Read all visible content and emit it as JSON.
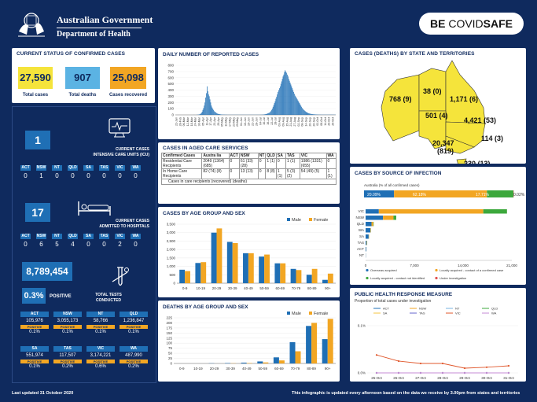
{
  "header": {
    "gov_line1": "Australian Government",
    "gov_line2": "Department of Health",
    "brand_be": "BE ",
    "brand_covid": "COVID",
    "brand_safe": "SAFE"
  },
  "status": {
    "title": "CURRENT STATUS OF CONFIRMED CASES",
    "total_cases": "27,590",
    "total_cases_label": "Total cases",
    "total_deaths": "907",
    "total_deaths_label": "Total deaths",
    "recovered": "25,098",
    "recovered_label": "Cases recovered",
    "colors": {
      "cases": "#f5e43b",
      "deaths": "#5bb3e3",
      "recovered": "#f2a623"
    }
  },
  "icu": {
    "value": "1",
    "label_line1": "CURRENT CASES",
    "label_line2": "INTENSIVE CARE UNITS (ICU)",
    "states": [
      "ACT",
      "NSW",
      "NT",
      "QLD",
      "SA",
      "TAS",
      "VIC",
      "WA"
    ],
    "values": [
      "0",
      "1",
      "0",
      "0",
      "0",
      "0",
      "0",
      "0"
    ],
    "icon": "ecg-monitor-icon"
  },
  "hospital": {
    "value": "17",
    "label_line1": "CURRENT CASES",
    "label_line2": "ADMITTED TO HOSPITALS",
    "states": [
      "ACT",
      "NSW",
      "NT",
      "QLD",
      "SA",
      "TAS",
      "VIC",
      "WA"
    ],
    "values": [
      "0",
      "6",
      "5",
      "4",
      "0",
      "0",
      "2",
      "0"
    ],
    "icon": "hospital-bed-icon"
  },
  "tests": {
    "value": "8,789,454",
    "positive": "0.3%",
    "positive_label": "POSITIVE",
    "label_line1": "TOTAL TESTS",
    "label_line2": "CONDUCTED",
    "icon": "test-tube-icon",
    "positive_tag": "POSITIVE",
    "states_row1": [
      {
        "state": "ACT",
        "tests": "105,976",
        "pos": "0.1%"
      },
      {
        "state": "NSW",
        "tests": "3,055,173",
        "pos": "0.1%"
      },
      {
        "state": "NT",
        "tests": "58,766",
        "pos": "0.1%"
      },
      {
        "state": "QLD",
        "tests": "1,236,847",
        "pos": "0.1%"
      }
    ],
    "states_row2": [
      {
        "state": "SA",
        "tests": "551,974",
        "pos": "0.1%"
      },
      {
        "state": "TAS",
        "tests": "117,507",
        "pos": "0.2%"
      },
      {
        "state": "VIC",
        "tests": "3,174,221",
        "pos": "0.6%"
      },
      {
        "state": "WA",
        "tests": "487,990",
        "pos": "0.2%"
      }
    ]
  },
  "aged_care": {
    "title": "CASES IN AGED CARE SERVICES",
    "headers": [
      "Confirmed Cases",
      "Austra lia",
      "ACT",
      "NSW",
      "NT",
      "QLD",
      "SA",
      "TAS",
      "VIC",
      "WA"
    ],
    "rows": [
      [
        "Residential Care Recipients",
        "2049 (1364) (685)",
        "0",
        "61 (33) (28)",
        "0",
        "1 (1)",
        "0",
        "1 (1)",
        "1986 (1331) (655)",
        "0"
      ],
      [
        "In Home Care Recipients",
        "82 (74) (8)",
        "0",
        "13 (13)",
        "0",
        "8 (8)",
        "1 (1)",
        "5 (3) (2)",
        "54 (49) (5)",
        "1 (1)"
      ]
    ],
    "footnote": "Cases in care recipients (recovered) (deaths)"
  },
  "footer": {
    "left": "Last updated 31 October 2020",
    "right": "This infographic is updated every afternoon based on the data we receive by 3.00pm from states and territories"
  },
  "chart_data": [
    {
      "id": "daily",
      "type": "bar",
      "title": "DAILY NUMBER OF REPORTED CASES",
      "ylim": [
        0,
        800
      ],
      "yticks": [
        0,
        100,
        200,
        300,
        400,
        500,
        600,
        700,
        800
      ],
      "xlabels": [
        "22-Jan",
        "28-Feb",
        "06-Mar",
        "12-Mar",
        "18-Mar",
        "24-Mar",
        "30-Mar",
        "05-Apr",
        "11-Apr",
        "17-Apr",
        "23-Apr",
        "29-Apr",
        "05-May",
        "11-May",
        "17-May",
        "23-May",
        "29-May",
        "04-Jun",
        "10-Jun",
        "16-Jun",
        "22-Jun",
        "28-Jun",
        "04-Jul",
        "10-Jul",
        "16-Jul",
        "22-Jul",
        "28-Jul",
        "03-Aug",
        "09-Aug",
        "15-Aug",
        "21-Aug",
        "27-Aug",
        "02-Sep",
        "08-Sep",
        "14-Sep",
        "20-Sep",
        "26-Sep",
        "02-Oct",
        "08-Oct",
        "14-Oct",
        "20-Oct",
        "26-Oct"
      ],
      "values": [
        0,
        0,
        0,
        0,
        0,
        0,
        0,
        0,
        0,
        0,
        0,
        0,
        0,
        0,
        0,
        0,
        0,
        0,
        0,
        0,
        0,
        0,
        0,
        0,
        0,
        1,
        1,
        0,
        0,
        1,
        2,
        3,
        5,
        8,
        12,
        20,
        30,
        50,
        80,
        110,
        150,
        200,
        280,
        350,
        460,
        380,
        330,
        300,
        250,
        200,
        150,
        120,
        100,
        80,
        60,
        50,
        40,
        30,
        22,
        18,
        14,
        12,
        10,
        8,
        6,
        5,
        5,
        4,
        4,
        3,
        3,
        3,
        2,
        2,
        2,
        2,
        2,
        2,
        2,
        2,
        2,
        2,
        2,
        2,
        2,
        2,
        2,
        2,
        2,
        2,
        2,
        2,
        2,
        2,
        2,
        2,
        2,
        2,
        2,
        2,
        2,
        2,
        2,
        2,
        2,
        2,
        2,
        2,
        2,
        2,
        2,
        2,
        2,
        2,
        2,
        2,
        2,
        2,
        2,
        3,
        3,
        4,
        5,
        6,
        8,
        10,
        12,
        15,
        20,
        25,
        30,
        35,
        45,
        60,
        80,
        100,
        130,
        160,
        190,
        220,
        260,
        290,
        330,
        370,
        400,
        430,
        460,
        500,
        540,
        580,
        620,
        650,
        690,
        720,
        700,
        680,
        650,
        620,
        580,
        550,
        520,
        490,
        460,
        430,
        400,
        370,
        340,
        310,
        290,
        270,
        250,
        230,
        210,
        190,
        170,
        150,
        130,
        110,
        95,
        80,
        70,
        60,
        50,
        42,
        36,
        30,
        25,
        22,
        19,
        16,
        14,
        12,
        10,
        9,
        8,
        7,
        6,
        6,
        5,
        5,
        4,
        4,
        4,
        3,
        3,
        3,
        3,
        3,
        3,
        3,
        3,
        3,
        3,
        3,
        3,
        3,
        3,
        3,
        3,
        3,
        3,
        3,
        3,
        3
      ],
      "color": "#1f6fb5"
    },
    {
      "id": "state_deaths",
      "type": "map",
      "title": "CASES (DEATHS) BY STATE AND TERRITORIES",
      "labels": [
        {
          "state": "WA",
          "text": "768 (9)"
        },
        {
          "state": "NT",
          "text": "38 (0)"
        },
        {
          "state": "QLD",
          "text": "1,171 (6)"
        },
        {
          "state": "SA",
          "text": "501 (4)"
        },
        {
          "state": "NSW",
          "text": "4,421 (53)"
        },
        {
          "state": "ACT",
          "text": "114 (3)"
        },
        {
          "state": "VIC",
          "text": "20,347"
        },
        {
          "state": "VIC_deaths",
          "text": "(819)"
        },
        {
          "state": "TAS",
          "text": "230 (13)"
        }
      ],
      "colors": {
        "fill": "#f5e43b",
        "stroke": "#333333"
      }
    },
    {
      "id": "source",
      "type": "bar",
      "title": "CASES BY SOURCE OF INFECTION",
      "summary_label": "Australia (% of all confirmed cases)",
      "summary": [
        {
          "name": "Overseas acquired",
          "pct": "20.09%",
          "value": 20.09,
          "color": "#1f6fb5"
        },
        {
          "name": "Locally acquired - contact of a confirmed case",
          "pct": "62.18%",
          "value": 62.18,
          "color": "#f2a623"
        },
        {
          "name": "Locally acquired - contact not identified",
          "pct": "17.71%",
          "value": 17.71,
          "color": "#3ca83c"
        },
        {
          "name": "Under investigation",
          "pct": "0.02%",
          "value": 0.02,
          "color": "#e05050"
        }
      ],
      "categories": [
        "VIC",
        "NSW",
        "QLD",
        "WA",
        "SA",
        "TAS",
        "ACT",
        "NT"
      ],
      "series": [
        {
          "name": "Overseas acquired",
          "values": [
            1900,
            2500,
            850,
            690,
            440,
            150,
            100,
            30
          ],
          "color": "#1f6fb5"
        },
        {
          "name": "Locally acquired - contact of a confirmed case",
          "values": [
            15000,
            1500,
            250,
            60,
            55,
            60,
            12,
            6
          ],
          "color": "#f2a623"
        },
        {
          "name": "Locally acquired - contact not identified",
          "values": [
            3400,
            400,
            60,
            15,
            5,
            20,
            2,
            2
          ],
          "color": "#3ca83c"
        },
        {
          "name": "Under investigation",
          "values": [
            5,
            2,
            0,
            0,
            0,
            0,
            0,
            0
          ],
          "color": "#e05050"
        }
      ],
      "xticks": [
        "0",
        "7,000",
        "14,000",
        "21,000"
      ],
      "xlim": [
        0,
        21000
      ]
    },
    {
      "id": "age_sex",
      "type": "bar",
      "title": "CASES BY AGE GROUP AND SEX",
      "categories": [
        "0-9",
        "10-19",
        "20-29",
        "30-39",
        "40-49",
        "50-59",
        "60-69",
        "70-79",
        "80-89",
        "90+"
      ],
      "series": [
        {
          "name": "Male",
          "values": [
            800,
            1200,
            3000,
            2450,
            1780,
            1580,
            1180,
            850,
            500,
            200
          ],
          "color": "#1f6fb5"
        },
        {
          "name": "Female",
          "values": [
            720,
            1250,
            3250,
            2380,
            1780,
            1700,
            1180,
            780,
            850,
            570
          ],
          "color": "#f2a623"
        }
      ],
      "ylim": [
        0,
        3500
      ],
      "yticks": [
        "0",
        "500",
        "1,000",
        "1,500",
        "2,000",
        "2,500",
        "3,000",
        "3,500"
      ]
    },
    {
      "id": "deaths_age",
      "type": "bar",
      "title": "DEATHS BY AGE GROUP AND SEX",
      "categories": [
        "0-9",
        "10-19",
        "20-29",
        "30-39",
        "40-49",
        "50-59",
        "60-69",
        "70-79",
        "80-89",
        "90+"
      ],
      "series": [
        {
          "name": "Male",
          "values": [
            0,
            0,
            1,
            2,
            4,
            10,
            30,
            105,
            185,
            120
          ],
          "color": "#1f6fb5"
        },
        {
          "name": "Female",
          "values": [
            0,
            0,
            0,
            1,
            2,
            5,
            15,
            60,
            200,
            220
          ],
          "color": "#f2a623"
        }
      ],
      "ylim": [
        0,
        225
      ],
      "yticks": [
        "0",
        "25",
        "50",
        "75",
        "100",
        "125",
        "150",
        "175",
        "200",
        "225"
      ]
    },
    {
      "id": "phr",
      "type": "line",
      "title": "PUBLIC HEALTH RESPONSE MEASURE",
      "subtitle": "Proportion of total cases under investigation",
      "x": [
        "25-Oct",
        "26-Oct",
        "27-Oct",
        "28-Oct",
        "29-Oct",
        "30-Oct",
        "31-Oct"
      ],
      "ylim": [
        0,
        0.1
      ],
      "yticks": [
        "0.0%",
        "0.1%"
      ],
      "series": [
        {
          "name": "ACT",
          "values": [
            0,
            0,
            0,
            0,
            0,
            0,
            0
          ],
          "color": "#1f6fb5"
        },
        {
          "name": "NSW",
          "values": [
            0,
            0,
            0,
            0,
            0,
            0,
            0
          ],
          "color": "#f2a623"
        },
        {
          "name": "NT",
          "values": [
            0,
            0,
            0,
            0,
            0,
            0,
            0
          ],
          "color": "#7ab3e0"
        },
        {
          "name": "QLD",
          "values": [
            0,
            0,
            0,
            0,
            0,
            0,
            0
          ],
          "color": "#3ca83c"
        },
        {
          "name": "SA",
          "values": [
            0,
            0,
            0,
            0,
            0,
            0,
            0
          ],
          "color": "#f5c542"
        },
        {
          "name": "TAS",
          "values": [
            0,
            0,
            0,
            0,
            0,
            0,
            0
          ],
          "color": "#6666cc"
        },
        {
          "name": "VIC",
          "values": [
            0.038,
            0.025,
            0.02,
            0.02,
            0.01,
            0.012,
            0.015
          ],
          "color": "#e0572b"
        },
        {
          "name": "WA",
          "values": [
            0,
            0,
            0,
            0,
            0,
            0,
            0
          ],
          "color": "#c48bd6"
        }
      ]
    }
  ]
}
